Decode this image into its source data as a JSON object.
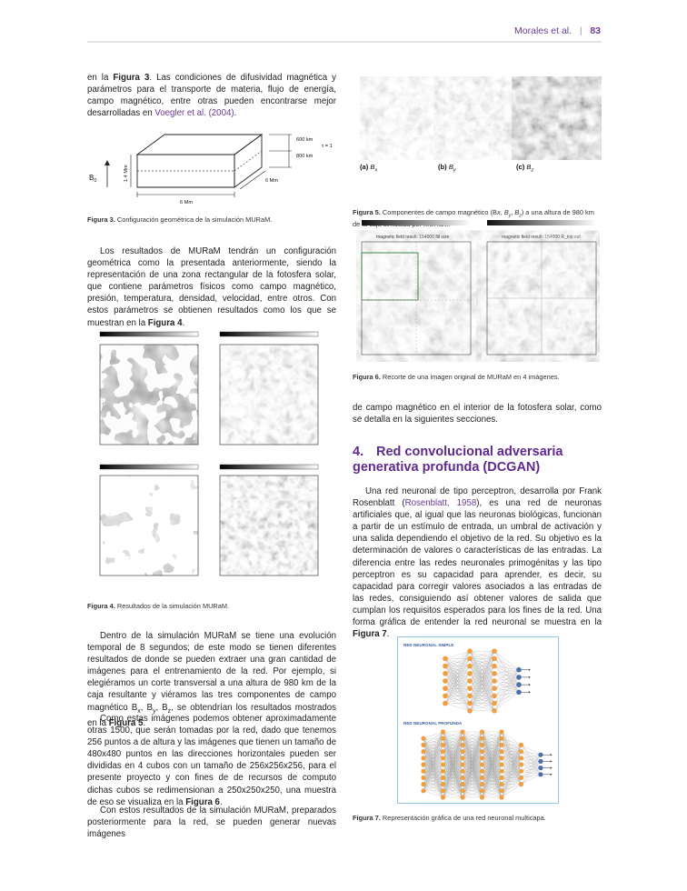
{
  "header": {
    "author": "Morales et al.",
    "separator": "|",
    "page": "83"
  },
  "col1": {
    "para1": {
      "pre": "en la ",
      "ref": "Figura 3",
      "mid": ". Las condiciones de difusividad magnética y parámetros para el transporte de materia, flujo de energía, campo magnético, entre otras pueden encontrarse mejor desarrolladas en ",
      "cite": "Voegler et al. (2004)",
      "post": "."
    },
    "fig3": {
      "labels": {
        "k600": "600 km",
        "tau": "τ = 1",
        "k800": "800 km",
        "mm14": "1.4 Mm",
        "mm6_right": "6 Mm",
        "mm6_bottom": "6 Mm",
        "b0": "B",
        "b0_sub": "0"
      },
      "caption_label": "Figura 3.",
      "caption": " Configuración geométrica de la simulación MURaM."
    },
    "para2": {
      "text": "Los resultados de MURaM tendrán un configuración geométrica como la presentada anteriormente, siendo la representación de una zona rectangular de la fotosfera solar, que contiene parámetros físicos como campo magnético, presión, temperatura, densidad, velocidad, entre otros. Con estos parámetros se obtienen resultados como los que se muestran en la ",
      "ref": "Figura 4",
      "post": "."
    },
    "fig4": {
      "caption_label": "Figura 4.",
      "caption": " Resultados de la simulación MURaM."
    },
    "para3": {
      "text": "Dentro de la simulación MURaM se tiene una evolución temporal de 8 segundos; de este modo se tienen diferentes resultados de donde se pueden extraer una gran cantidad de imágenes para el entrenamiento de la red. Por ejemplo, si elegiéramos un corte transversal a una altura de 980 km de la caja resultante y viéramos las tres componentes de campo magnético B",
      "bx": "x",
      "c1": ", B",
      "by": "y",
      "c2": ", B",
      "bz": "z",
      "post": ", se obtendrían los resultados mostrados en la ",
      "ref": "Figura 5",
      "end": "."
    },
    "para4": {
      "text": "Como estas imágenes podemos obtener aproximadamente otras 1500, que serán tomadas por la red, dado que tenemos 256 puntos a de altura y las imágenes que tienen un tamaño de 480x480 puntos en las direcciones horizontales pueden ser divididas en 4 cubos con un tamaño de 256x256x256, para el presente proyecto y con fines de de recursos de computo dichas cubos se redimensionan a 250x250x250, una muestra de eso se visualiza en la ",
      "ref": "Figura 6",
      "post": "."
    },
    "para5": {
      "text": "Con estos resultados de la simulación MURaM, preparados posteriormente para la red, se pueden generar nuevas imágenes"
    }
  },
  "col2": {
    "fig5": {
      "panels": [
        {
          "label": "(a)",
          "comp": "B",
          "sub": "x"
        },
        {
          "label": "(b)",
          "comp": "B",
          "sub": "y"
        },
        {
          "label": "(c)",
          "comp": "B",
          "sub": "z"
        }
      ],
      "caption_label": "Figura 5.",
      "caption_pre": " Componentes de campo magnético (B",
      "caption_post": ") a una altura de 980 km de la caja simulada por MURaM."
    },
    "fig6": {
      "left_title": "magnetic field result: 154000 fill size",
      "right_title": "magnetic field result: 154000 R_top cut",
      "caption_label": "Figura 6.",
      "caption": " Recorte de una imagen original de MURaM en 4 imágenes."
    },
    "para1": "de campo magnético en el interior de la fotosfera solar, como se detalla en la siguientes secciones.",
    "section": {
      "number": "4.",
      "title": "Red convolucional adversaria generativa profunda (DCGAN)"
    },
    "para2": {
      "text": "Una red neuronal de tipo perceptron, desarrolla por Frank Rosenblatt (",
      "cite": "Rosenblatt, 1958",
      "mid": "), es una red de neuronas artificiales que, al igual que las neuronas biológicas, funcionan a partir de un estímulo de entrada, un umbral de activación y una salida dependiendo el objetivo de la red. Su objetivo es la determinación de valores o características de las entradas. La diferencia entre las redes neuronales primogénitas y las tipo perceptron es su capacidad para aprender, es decir, su capacidad para corregir valores asociados a las entradas de las redes, consiguiendo así obtener valores de salida que cumplan los requisitos esperados para los fines de la red. Una forma gráfica de entender la red neuronal se muestra en la ",
      "ref": "Figura 7",
      "post": "."
    },
    "fig7": {
      "simple_label": "RED NEURONAL SIMPLE",
      "deep_label": "RED NEURONAL PROFUNDA",
      "caption_label": "Figura 7.",
      "caption": " Representación gráfica de una red neuronal multicapa."
    }
  },
  "colors": {
    "accent": "#5e2a8c",
    "link": "#6a3a92",
    "input_node": "#f39c3c",
    "hidden_node": "#f0a040",
    "output_node": "#4a6fb0",
    "net_border": "#8ec8e8"
  }
}
